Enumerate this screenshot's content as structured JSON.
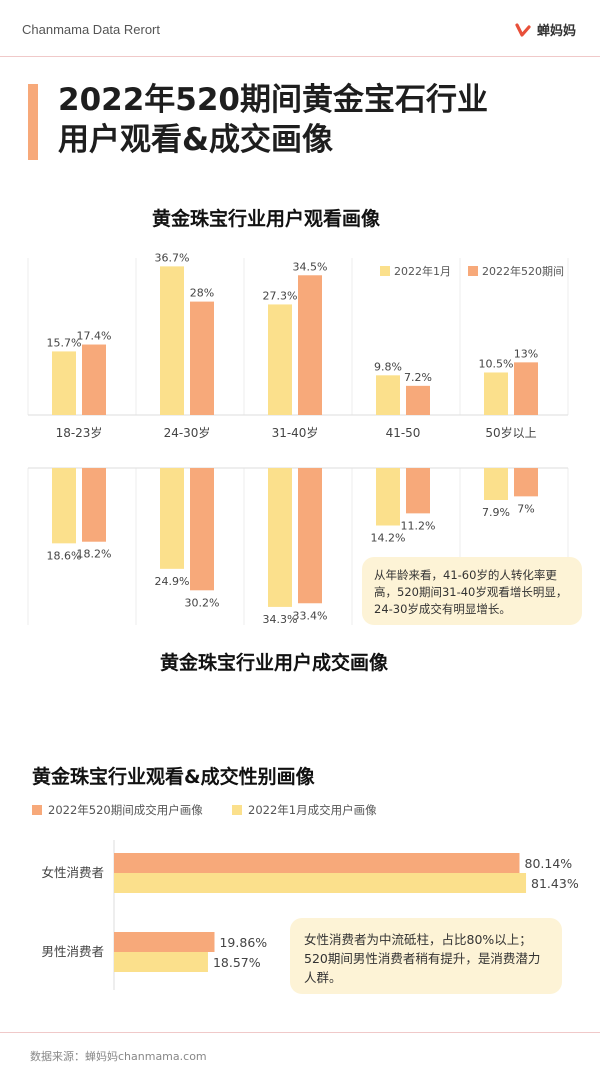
{
  "header": {
    "report_label": "Chanmama Data Rerort",
    "logo_text": "蝉妈妈"
  },
  "title": {
    "line1": "2022年520期间黄金宝石行业",
    "line2": "用户观看&成交画像"
  },
  "colors": {
    "jan": "#fbe08c",
    "period520": "#f7a97a",
    "note_bg": "#fdf3d6",
    "accent_line": "#f0c9c9"
  },
  "age_chart": {
    "title_view": "黄金珠宝行业用户观看画像",
    "title_deal": "黄金珠宝行业用户成交画像",
    "note": "从年龄来看，41-60岁的人转化率更高，520期间31-40岁观看增长明显，24-30岁成交有明显增长。"
  },
  "gender_chart": {
    "title": "黄金珠宝行业观看&成交性别画像",
    "note": "女性消费者为中流砥柱，占比80%以上；520期间男性消费者稍有提升，是消费潜力人群。"
  },
  "footer": {
    "source": "数据来源：蝉妈妈chanmama.com"
  },
  "chart_data": [
    {
      "type": "bar",
      "title": "黄金珠宝行业用户观看画像",
      "categories": [
        "18-23岁",
        "24-30岁",
        "31-40岁",
        "41-50",
        "50岁以上"
      ],
      "series": [
        {
          "name": "2022年1月",
          "values": [
            15.7,
            36.7,
            27.3,
            9.8,
            10.5
          ]
        },
        {
          "name": "2022年520期间",
          "values": [
            17.4,
            28.0,
            34.5,
            7.2,
            13.0
          ]
        }
      ],
      "unit": "%"
    },
    {
      "type": "bar",
      "title": "黄金珠宝行业用户成交画像",
      "categories": [
        "18-23岁",
        "24-30岁",
        "31-40岁",
        "41-50",
        "50岁以上"
      ],
      "series": [
        {
          "name": "2022年1月",
          "values": [
            18.6,
            24.9,
            34.3,
            14.2,
            7.9
          ]
        },
        {
          "name": "2022年520期间",
          "values": [
            18.2,
            30.2,
            33.4,
            11.2,
            7.0
          ]
        }
      ],
      "unit": "%"
    },
    {
      "type": "bar",
      "orientation": "horizontal",
      "title": "黄金珠宝行业观看&成交性别画像",
      "categories": [
        "女性消费者",
        "男性消费者"
      ],
      "series": [
        {
          "name": "2022年520期间成交用户画像",
          "values": [
            80.14,
            19.86
          ]
        },
        {
          "name": "2022年1月成交用户画像",
          "values": [
            81.43,
            18.57
          ]
        }
      ],
      "unit": "%"
    }
  ]
}
